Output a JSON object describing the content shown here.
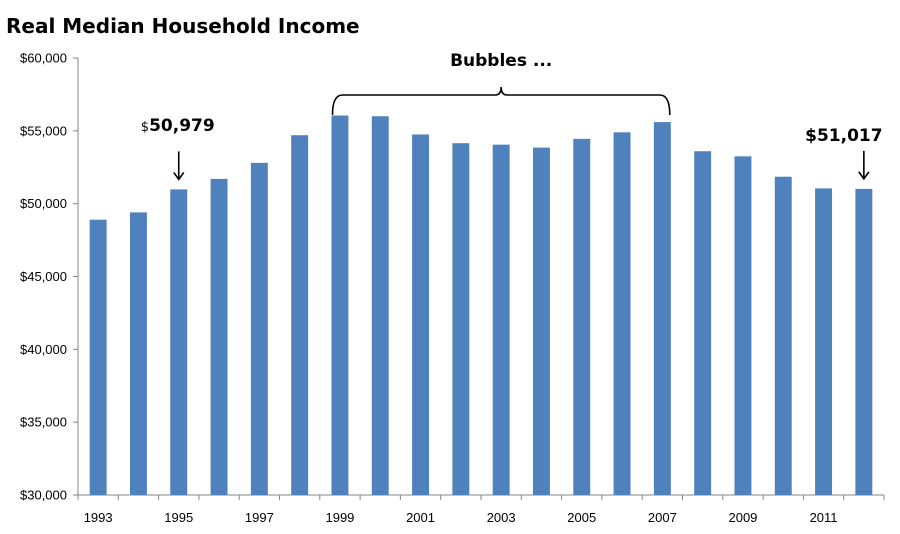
{
  "chart_data": {
    "type": "bar",
    "title": "Real Median Household Income",
    "xlabel": "",
    "ylabel": "",
    "categories": [
      "1993",
      "1994",
      "1995",
      "1996",
      "1997",
      "1998",
      "1999",
      "2000",
      "2001",
      "2002",
      "2003",
      "2004",
      "2005",
      "2006",
      "2007",
      "2008",
      "2009",
      "2010",
      "2011",
      "2012"
    ],
    "x_tick_labels": [
      "1993",
      "1995",
      "1997",
      "1999",
      "2001",
      "2003",
      "2005",
      "2007",
      "2009",
      "2011"
    ],
    "values": [
      48900,
      49400,
      50979,
      51700,
      52800,
      54700,
      56050,
      56000,
      54750,
      54150,
      54050,
      53850,
      54450,
      54900,
      55600,
      53600,
      53250,
      51850,
      51050,
      51017
    ],
    "ylim": [
      30000,
      60000
    ],
    "y_ticks": [
      30000,
      35000,
      40000,
      45000,
      50000,
      55000,
      60000
    ],
    "y_tick_labels": [
      "$30,000",
      "$35,000",
      "$40,000",
      "$45,000",
      "$50,000",
      "$55,000",
      "$60,000"
    ],
    "bar_color": "#4F81BD",
    "grid": false,
    "legend": "none",
    "annotations": [
      {
        "text_prefix": "$",
        "text": "50,979",
        "category": "1995",
        "arrow": true
      },
      {
        "text": "$51,017",
        "category": "2012",
        "arrow": true
      },
      {
        "text": "Bubbles ...",
        "from_category": "1999",
        "to_category": "2007",
        "bracket": true
      }
    ]
  }
}
